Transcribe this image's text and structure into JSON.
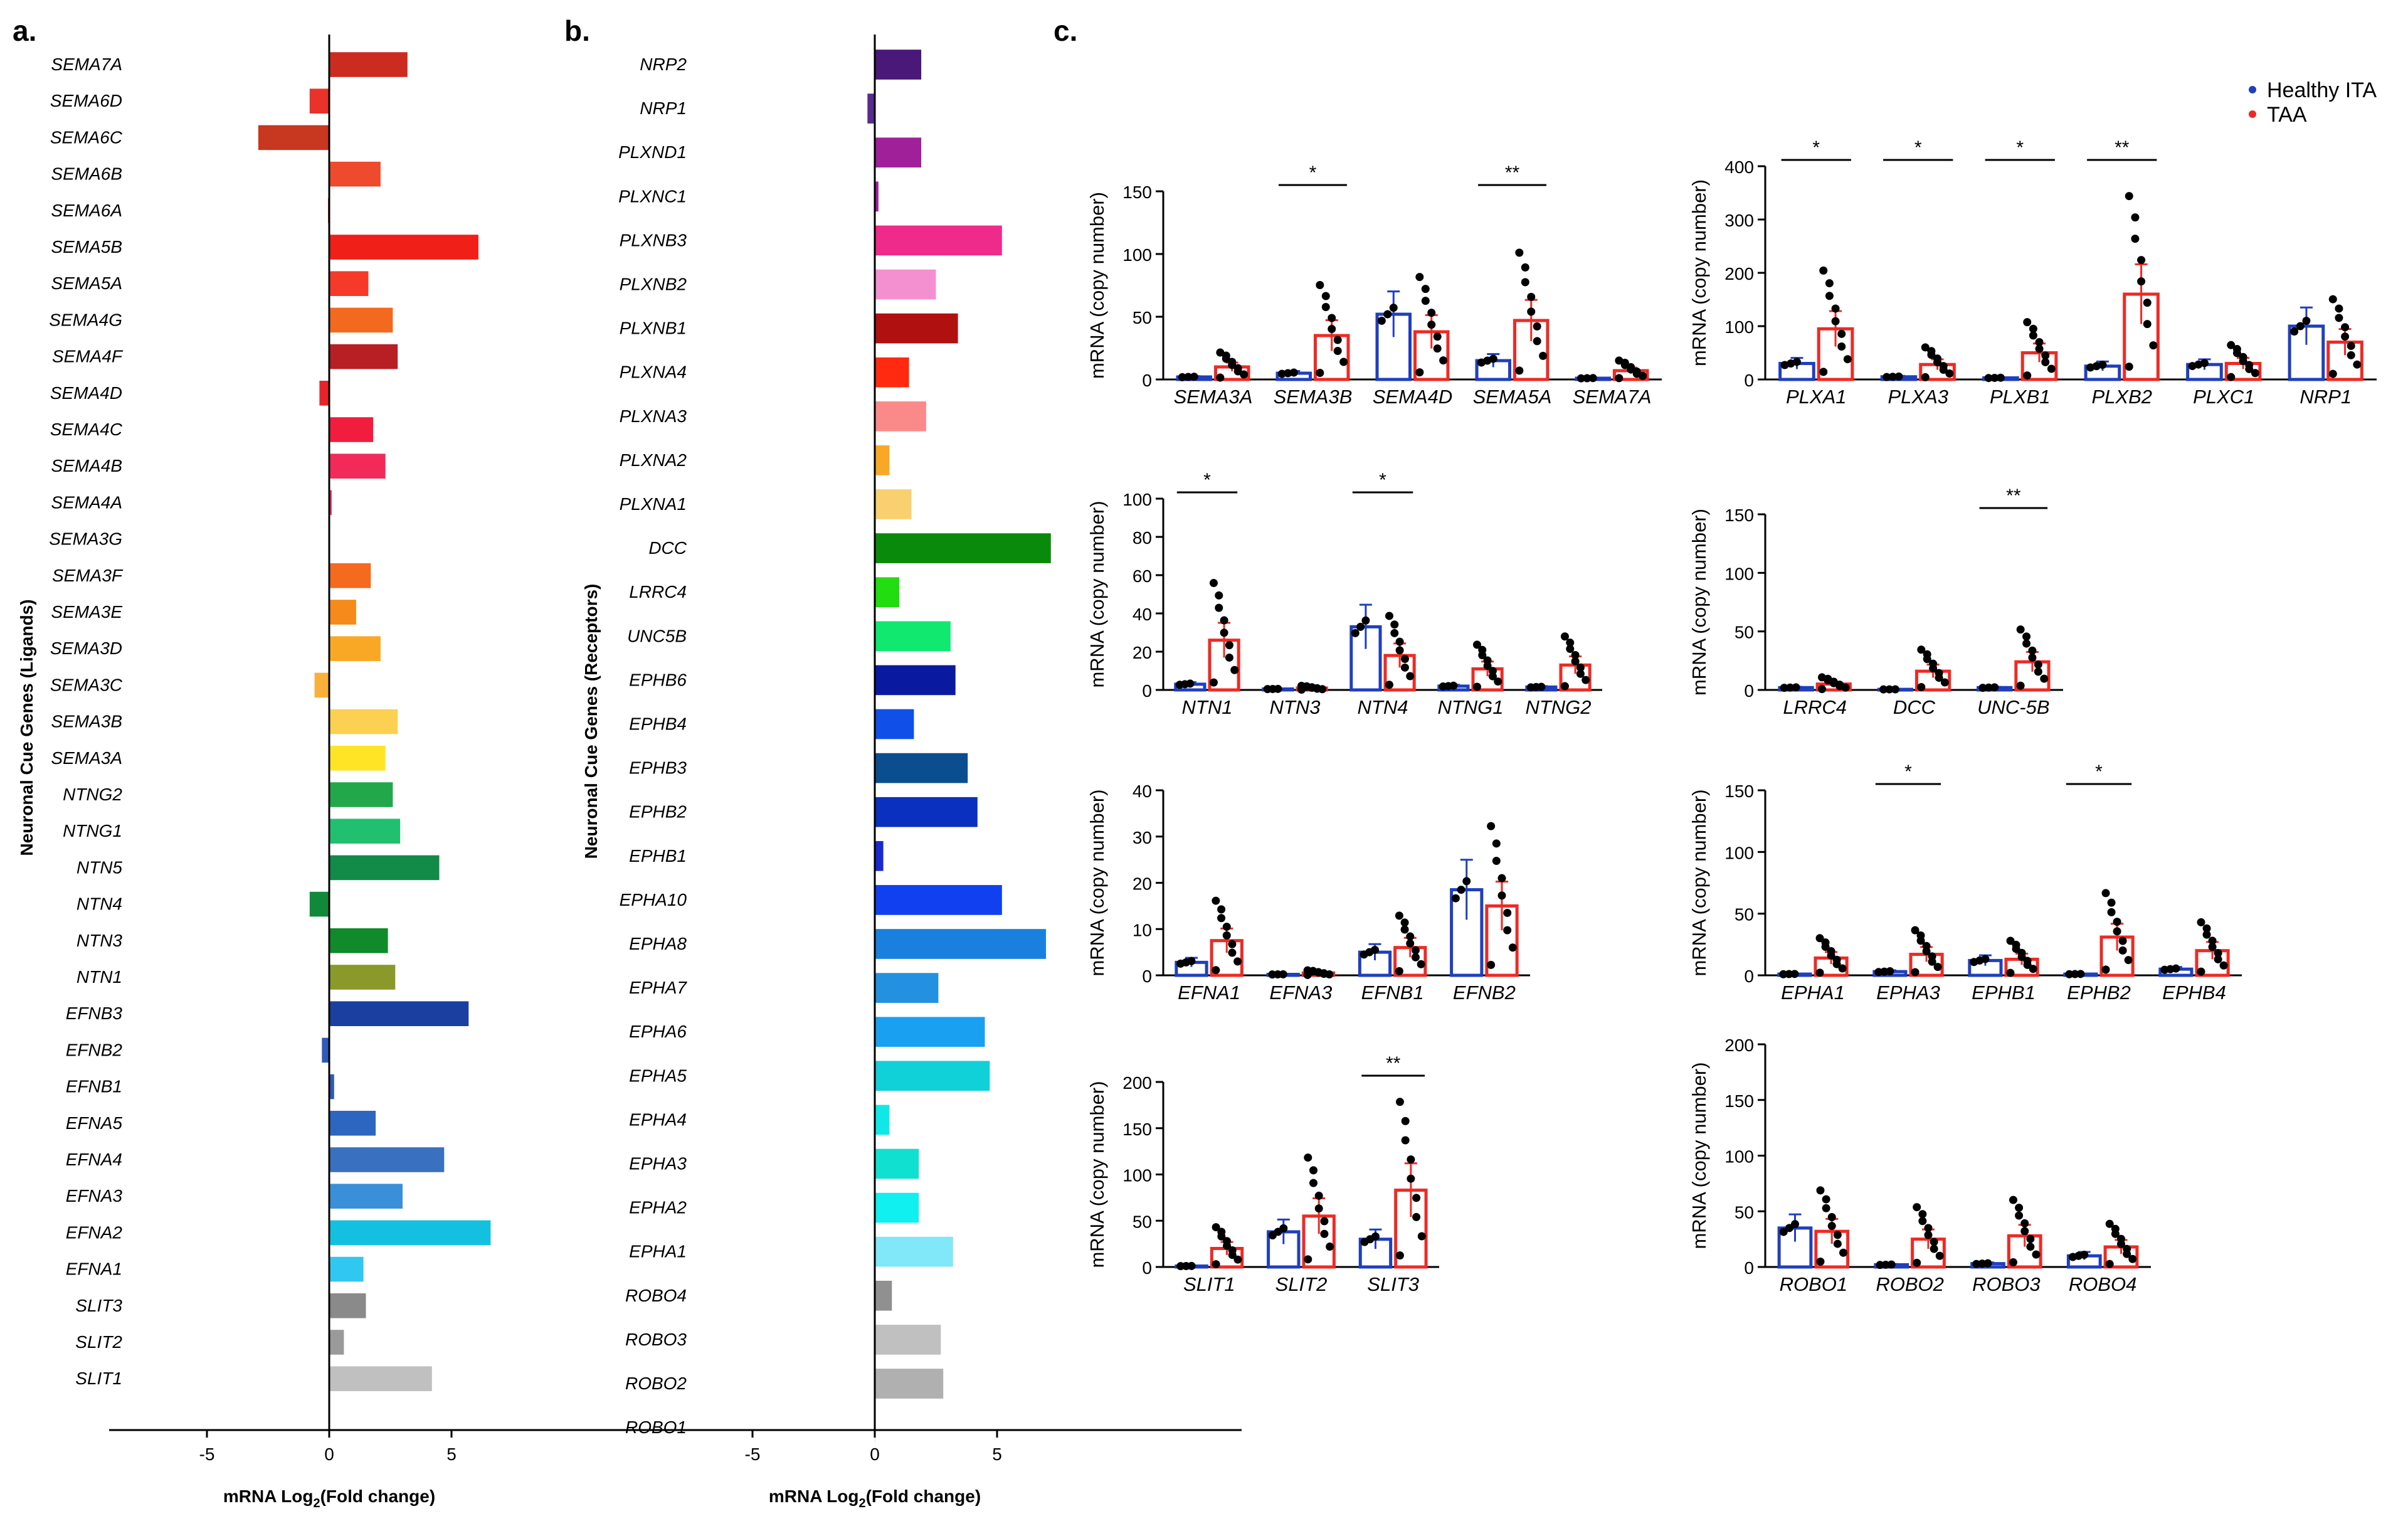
{
  "panels": {
    "a": {
      "label": "a.",
      "ylabel": "Neuronal Cue  Genes (Ligands)",
      "xlabel_pre": "mRNA Log",
      "xlabel_sub": "2",
      "xlabel_post": "(Fold change)"
    },
    "b": {
      "label": "b.",
      "ylabel": "Neuronal Cue  Genes (Receptors)",
      "xlabel_pre": "mRNA Log",
      "xlabel_sub": "2",
      "xlabel_post": "(Fold change)"
    },
    "c": {
      "label": "c."
    }
  },
  "legend": {
    "items": [
      {
        "label": "Healthy ITA",
        "color": "#1f3fbf"
      },
      {
        "label": "TAA",
        "color": "#ee2a24"
      }
    ]
  },
  "chart_data": [
    {
      "id": "a",
      "type": "bar",
      "orientation": "horizontal",
      "xlabel": "mRNA Log2(Fold change)",
      "ylabel": "Neuronal Cue  Genes (Ligands)",
      "xlim": [
        -9,
        15
      ],
      "xticks": [
        -5,
        0,
        5
      ],
      "categories": [
        "SEMA7A",
        "SEMA6D",
        "SEMA6C",
        "SEMA6B",
        "SEMA6A",
        "SEMA5B",
        "SEMA5A",
        "SEMA4G",
        "SEMA4F",
        "SEMA4D",
        "SEMA4C",
        "SEMA4B",
        "SEMA4A",
        "SEMA3G",
        "SEMA3F",
        "SEMA3E",
        "SEMA3D",
        "SEMA3C",
        "SEMA3B",
        "SEMA3A",
        "NTNG2",
        "NTNG1",
        "NTN5",
        "NTN4",
        "NTN3",
        "NTN1",
        "EFNB3",
        "EFNB2",
        "EFNB1",
        "EFNA5",
        "EFNA4",
        "EFNA3",
        "EFNA2",
        "EFNA1",
        "SLIT3",
        "SLIT2",
        "SLIT1"
      ],
      "values": [
        3.2,
        -0.8,
        -2.9,
        2.1,
        -0.05,
        6.1,
        1.6,
        2.6,
        2.8,
        -0.4,
        1.8,
        2.3,
        0.1,
        0.0,
        1.7,
        1.1,
        2.1,
        -0.6,
        2.8,
        2.3,
        2.6,
        2.9,
        4.5,
        -0.8,
        2.4,
        2.7,
        5.7,
        -0.3,
        0.2,
        1.9,
        4.7,
        3.0,
        6.6,
        1.4,
        1.5,
        0.6,
        4.2
      ],
      "colors": [
        "#cc2b1f",
        "#e8322a",
        "#c8371f",
        "#ee4a2d",
        "#e23a2a",
        "#f01f18",
        "#f53a2a",
        "#f36a1f",
        "#b81f24",
        "#e8242a",
        "#f21c3e",
        "#f22a5a",
        "#f22a5a",
        "#f22a5a",
        "#f46a1f",
        "#f68a1a",
        "#f9a825",
        "#f9b03a",
        "#fcd050",
        "#fde525",
        "#22a84a",
        "#20c070",
        "#128a48",
        "#108a3a",
        "#118a2a",
        "#8a9a2a",
        "#1a3fa0",
        "#2f5ab8",
        "#2f5ab8",
        "#2c66c0",
        "#3a70c0",
        "#3a90d8",
        "#14c0e0",
        "#30c8f0",
        "#8a8a8a",
        "#9a9a9a",
        "#c0c0c0"
      ]
    },
    {
      "id": "b",
      "type": "bar",
      "orientation": "horizontal",
      "xlabel": "mRNA Log2(Fold change)",
      "ylabel": "Neuronal Cue  Genes (Receptors)",
      "xlim": [
        -9,
        15
      ],
      "xticks": [
        -5,
        0,
        5
      ],
      "categories": [
        "NRP2",
        "NRP1",
        "PLXND1",
        "PLXNC1",
        "PLXNB3",
        "PLXNB2",
        "PLXNB1",
        "PLXNA4",
        "PLXNA3",
        "PLXNA2",
        "PLXNA1",
        "DCC",
        "LRRC4",
        "UNC5B",
        "EPHB6",
        "EPHB4",
        "EPHB3",
        "EPHB2",
        "EPHB1",
        "EPHA10",
        "EPHA8",
        "EPHA7",
        "EPHA6",
        "EPHA5",
        "EPHA4",
        "EPHA3",
        "EPHA2",
        "EPHA1",
        "ROBO4",
        "ROBO3",
        "ROBO2",
        "ROBO1"
      ],
      "values": [
        1.9,
        -0.3,
        1.9,
        0.15,
        5.2,
        2.5,
        3.4,
        1.4,
        2.1,
        0.6,
        1.5,
        7.2,
        1.0,
        3.1,
        3.3,
        1.6,
        3.8,
        4.2,
        0.35,
        5.2,
        7.0,
        2.6,
        4.5,
        4.7,
        0.6,
        1.8,
        1.8,
        3.2,
        0.7,
        2.7,
        2.8,
        0.0
      ],
      "colors": [
        "#4a1878",
        "#5a2a90",
        "#a0209a",
        "#a0209a",
        "#ee2a8a",
        "#f590d0",
        "#b01010",
        "#ff2a10",
        "#fa8a8a",
        "#f9a825",
        "#f9d070",
        "#0a8a0a",
        "#22dd10",
        "#10e870",
        "#0a1aa0",
        "#1050e8",
        "#0a4e90",
        "#0a30c0",
        "#1a2ad0",
        "#1040f0",
        "#1a80e0",
        "#2490e0",
        "#1aa0f0",
        "#10d0d8",
        "#10e8e8",
        "#10e0d0",
        "#10f0f0",
        "#80e8f8",
        "#909090",
        "#c0c0c0",
        "#b0b0b0",
        "#c0c0c0"
      ]
    },
    {
      "id": "c1",
      "type": "bar",
      "series_names": [
        "Healthy ITA",
        "TAA"
      ],
      "ylabel": "mRNA (copy number)",
      "ylim": [
        0,
        150
      ],
      "yticks": [
        0,
        50,
        100,
        150
      ],
      "categories": [
        "SEMA3A",
        "SEMA3B",
        "SEMA4D",
        "SEMA5A",
        "SEMA7A"
      ],
      "series": [
        {
          "name": "Healthy ITA",
          "values": [
            2,
            5,
            52,
            15,
            1
          ]
        },
        {
          "name": "TAA",
          "values": [
            10,
            35,
            38,
            47,
            7
          ]
        }
      ],
      "significance": [
        {
          "category": "SEMA3B",
          "label": "*"
        },
        {
          "category": "SEMA5A",
          "label": "**"
        }
      ]
    },
    {
      "id": "c2",
      "type": "bar",
      "series_names": [
        "Healthy ITA",
        "TAA"
      ],
      "ylabel": "mRNA (copy number)",
      "ylim": [
        0,
        400
      ],
      "yticks": [
        0,
        100,
        200,
        300,
        400
      ],
      "categories": [
        "PLXA1",
        "PLXA3",
        "PLXB1",
        "PLXB2",
        "PLXC1",
        "NRP1"
      ],
      "series": [
        {
          "name": "Healthy ITA",
          "values": [
            30,
            5,
            3,
            25,
            28,
            100
          ]
        },
        {
          "name": "TAA",
          "values": [
            95,
            28,
            50,
            160,
            30,
            70
          ]
        }
      ],
      "significance": [
        {
          "category": "PLXA1",
          "label": "*"
        },
        {
          "category": "PLXA3",
          "label": "*"
        },
        {
          "category": "PLXB1",
          "label": "*"
        },
        {
          "category": "PLXB2",
          "label": "**"
        }
      ]
    },
    {
      "id": "c3",
      "type": "bar",
      "series_names": [
        "Healthy ITA",
        "TAA"
      ],
      "ylabel": "mRNA (copy number)",
      "ylim": [
        0,
        100
      ],
      "yticks": [
        0,
        20,
        40,
        60,
        80,
        100
      ],
      "categories": [
        "NTN1",
        "NTN3",
        "NTN4",
        "NTNG1",
        "NTNG2"
      ],
      "series": [
        {
          "name": "Healthy ITA",
          "values": [
            3,
            0.5,
            33,
            2,
            1.5
          ]
        },
        {
          "name": "TAA",
          "values": [
            26,
            1,
            18,
            11,
            13
          ]
        }
      ],
      "significance": [
        {
          "category": "NTN1",
          "label": "*"
        },
        {
          "category": "NTN4",
          "label": "*"
        }
      ]
    },
    {
      "id": "c4",
      "type": "bar",
      "series_names": [
        "Healthy ITA",
        "TAA"
      ],
      "ylabel": "mRNA (copy number)",
      "ylim": [
        0,
        150
      ],
      "yticks": [
        0,
        50,
        100,
        150
      ],
      "categories": [
        "LRRC4",
        "DCC",
        "UNC-5B"
      ],
      "series": [
        {
          "name": "Healthy ITA",
          "values": [
            2,
            0.5,
            2
          ]
        },
        {
          "name": "TAA",
          "values": [
            5,
            16,
            24
          ]
        }
      ],
      "significance": [
        {
          "category": "UNC-5B",
          "label": "**"
        }
      ]
    },
    {
      "id": "c5",
      "type": "bar",
      "series_names": [
        "Healthy ITA",
        "TAA"
      ],
      "ylabel": "mRNA (copy number)",
      "ylim": [
        0,
        40
      ],
      "yticks": [
        0,
        10,
        20,
        30,
        40
      ],
      "categories": [
        "EFNA1",
        "EFNA3",
        "EFNB1",
        "EFNB2"
      ],
      "series": [
        {
          "name": "Healthy ITA",
          "values": [
            2.8,
            0.2,
            5,
            18.5
          ]
        },
        {
          "name": "TAA",
          "values": [
            7.5,
            0.5,
            6,
            15
          ]
        }
      ],
      "significance": []
    },
    {
      "id": "c6",
      "type": "bar",
      "series_names": [
        "Healthy ITA",
        "TAA"
      ],
      "ylabel": "mRNA (copy number)",
      "ylim": [
        0,
        150
      ],
      "yticks": [
        0,
        50,
        100,
        150
      ],
      "categories": [
        "EPHA1",
        "EPHA3",
        "EPHB1",
        "EPHB2",
        "EPHB4"
      ],
      "series": [
        {
          "name": "Healthy ITA",
          "values": [
            1,
            3,
            12,
            1,
            5
          ]
        },
        {
          "name": "TAA",
          "values": [
            14,
            17,
            13,
            31,
            20
          ]
        }
      ],
      "significance": [
        {
          "category": "EPHA3",
          "label": "*"
        },
        {
          "category": "EPHB2",
          "label": "*"
        }
      ]
    },
    {
      "id": "c7",
      "type": "bar",
      "series_names": [
        "Healthy ITA",
        "TAA"
      ],
      "ylabel": "mRNA (copy number)",
      "ylim": [
        0,
        200
      ],
      "yticks": [
        0,
        50,
        100,
        150,
        200
      ],
      "categories": [
        "SLIT1",
        "SLIT2",
        "SLIT3"
      ],
      "series": [
        {
          "name": "Healthy ITA",
          "values": [
            1,
            38,
            30
          ]
        },
        {
          "name": "TAA",
          "values": [
            20,
            55,
            83
          ]
        }
      ],
      "significance": [
        {
          "category": "SLIT3",
          "label": "**"
        }
      ]
    },
    {
      "id": "c8",
      "type": "bar",
      "series_names": [
        "Healthy ITA",
        "TAA"
      ],
      "ylabel": "mRNA (copy number)",
      "ylim": [
        0,
        200
      ],
      "yticks": [
        0,
        50,
        100,
        150,
        200
      ],
      "categories": [
        "ROBO1",
        "ROBO2",
        "ROBO3",
        "ROBO4"
      ],
      "series": [
        {
          "name": "Healthy ITA",
          "values": [
            35,
            2,
            3,
            10
          ]
        },
        {
          "name": "TAA",
          "values": [
            32,
            25,
            28,
            18
          ]
        }
      ],
      "significance": []
    }
  ]
}
